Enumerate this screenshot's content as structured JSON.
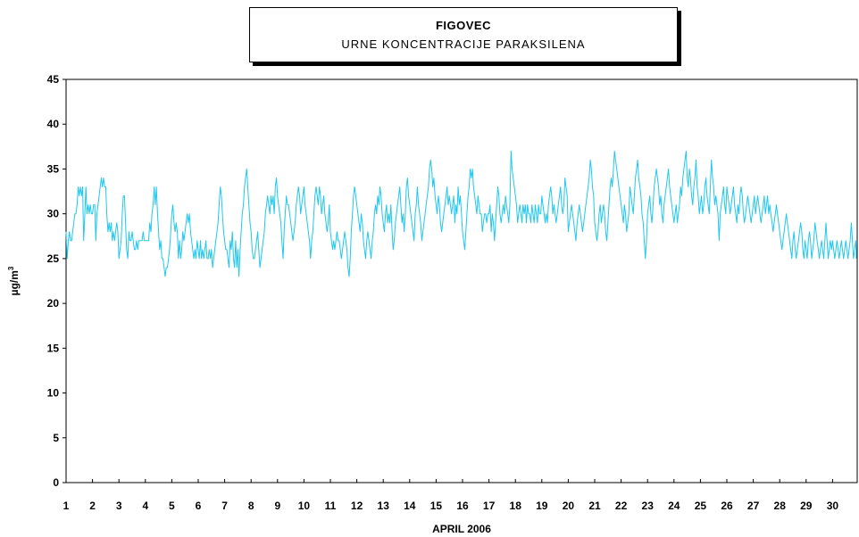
{
  "chart_data": {
    "type": "line",
    "title": "FIGOVEC",
    "subtitle": "URNE KONCENTRACIJE PARAKSILENA",
    "xlabel": "APRIL 2006",
    "ylabel": "µg/m",
    "ylabel_sup": "3",
    "ylim": [
      0,
      45
    ],
    "yticks": [
      "0",
      "5",
      "10",
      "15",
      "20",
      "25",
      "30",
      "35",
      "40",
      "45"
    ],
    "xticks": [
      "1",
      "2",
      "3",
      "4",
      "5",
      "6",
      "7",
      "8",
      "9",
      "10",
      "11",
      "12",
      "13",
      "14",
      "15",
      "16",
      "17",
      "18",
      "19",
      "20",
      "21",
      "22",
      "23",
      "24",
      "25",
      "26",
      "27",
      "28",
      "29",
      "30"
    ],
    "x_unit": "day of month (hourly samples)",
    "line_color": "#1ec8f0",
    "grid": false,
    "series": [
      {
        "day_values": [
          [
            28,
            25,
            27,
            28,
            27,
            27,
            28,
            29,
            30,
            30,
            31,
            33,
            32,
            33,
            32,
            33,
            27,
            30,
            33,
            30,
            31,
            30,
            31,
            30
          ],
          [
            30,
            31,
            31,
            27,
            30,
            31,
            32,
            33,
            34,
            33,
            34,
            33,
            33,
            30,
            28,
            29,
            28,
            29,
            27,
            28,
            27,
            28,
            29,
            28
          ],
          [
            25,
            26,
            27,
            30,
            32,
            32,
            29,
            26,
            25,
            28,
            27,
            27,
            28,
            27,
            26,
            26,
            27,
            26,
            27,
            27,
            27,
            27,
            28,
            27
          ],
          [
            27,
            27,
            27,
            27,
            29,
            28,
            30,
            31,
            33,
            31,
            33,
            30,
            28,
            26,
            27,
            25,
            25,
            24,
            23,
            24,
            24,
            25,
            26,
            28
          ],
          [
            30,
            31,
            29,
            28,
            29,
            28,
            25,
            27,
            25,
            26,
            28,
            27,
            28,
            29,
            30,
            29,
            30,
            28,
            27,
            26,
            25,
            26,
            25,
            27
          ],
          [
            26,
            25,
            27,
            25,
            26,
            25,
            26,
            27,
            25,
            25,
            26,
            25,
            26,
            24,
            25,
            26,
            27,
            28,
            29,
            31,
            33,
            32,
            30,
            28
          ],
          [
            27,
            26,
            26,
            25,
            24,
            27,
            26,
            28,
            25,
            24,
            27,
            24,
            26,
            23,
            26,
            28,
            30,
            31,
            33,
            34,
            35,
            33,
            31,
            29
          ],
          [
            28,
            26,
            25,
            25,
            26,
            27,
            28,
            26,
            24,
            25,
            26,
            27,
            28,
            30,
            31,
            32,
            31,
            30,
            32,
            31,
            32,
            30,
            33,
            34
          ],
          [
            32,
            31,
            30,
            29,
            27,
            25,
            28,
            30,
            32,
            31,
            31,
            30,
            29,
            28,
            27,
            28,
            29,
            31,
            32,
            33,
            32,
            30,
            31,
            32
          ],
          [
            33,
            31,
            30,
            29,
            28,
            27,
            25,
            27,
            28,
            30,
            32,
            33,
            32,
            31,
            33,
            32,
            30,
            31,
            32,
            30,
            29,
            28,
            29,
            31
          ],
          [
            28,
            27,
            26,
            27,
            26,
            27,
            28,
            27,
            27,
            26,
            25,
            26,
            27,
            28,
            27,
            26,
            24,
            23,
            25,
            28,
            30,
            32,
            33,
            32
          ],
          [
            31,
            30,
            29,
            28,
            30,
            29,
            27,
            26,
            25,
            27,
            28,
            27,
            26,
            25,
            27,
            28,
            30,
            31,
            30,
            32,
            31,
            33,
            32,
            30
          ],
          [
            29,
            28,
            30,
            31,
            29,
            30,
            29,
            31,
            28,
            26,
            27,
            29,
            30,
            31,
            32,
            33,
            31,
            29,
            30,
            28,
            30,
            33,
            34,
            32
          ],
          [
            31,
            30,
            29,
            28,
            27,
            30,
            31,
            33,
            31,
            30,
            29,
            27,
            28,
            29,
            30,
            31,
            32,
            33,
            35,
            36,
            35,
            33,
            34,
            32
          ],
          [
            31,
            30,
            32,
            31,
            29,
            28,
            29,
            30,
            31,
            32,
            33,
            31,
            32,
            31,
            30,
            31,
            32,
            29,
            31,
            30,
            33,
            31,
            32,
            30
          ],
          [
            28,
            27,
            26,
            28,
            30,
            32,
            33,
            35,
            34,
            35,
            33,
            32,
            31,
            30,
            32,
            31,
            30,
            30,
            28,
            29,
            30,
            30,
            29,
            30
          ],
          [
            30,
            31,
            28,
            30,
            29,
            27,
            29,
            31,
            33,
            32,
            30,
            29,
            30,
            31,
            30,
            32,
            31,
            30,
            29,
            31,
            37,
            35,
            34,
            33
          ],
          [
            32,
            31,
            29,
            30,
            31,
            30,
            29,
            31,
            30,
            31,
            29,
            31,
            30,
            30,
            29,
            31,
            30,
            29,
            31,
            30,
            29,
            31,
            30,
            30
          ],
          [
            32,
            31,
            30,
            29,
            30,
            29,
            31,
            32,
            33,
            32,
            30,
            31,
            30,
            29,
            30,
            31,
            32,
            33,
            31,
            30,
            31,
            34,
            33,
            32
          ],
          [
            28,
            29,
            30,
            31,
            30,
            29,
            28,
            27,
            29,
            30,
            31,
            30,
            29,
            28,
            29,
            30,
            31,
            32,
            33,
            34,
            36,
            35,
            33,
            32
          ],
          [
            29,
            28,
            27,
            28,
            30,
            31,
            29,
            30,
            31,
            30,
            28,
            27,
            29,
            31,
            33,
            34,
            33,
            35,
            37,
            36,
            35,
            34,
            33,
            32
          ],
          [
            31,
            30,
            29,
            31,
            30,
            28,
            29,
            30,
            33,
            32,
            31,
            30,
            32,
            34,
            35,
            36,
            34,
            33,
            32,
            30,
            29,
            27,
            25,
            27
          ],
          [
            30,
            31,
            32,
            30,
            29,
            31,
            33,
            34,
            35,
            34,
            33,
            31,
            32,
            30,
            29,
            31,
            32,
            33,
            34,
            35,
            33,
            32,
            31,
            30
          ],
          [
            29,
            30,
            31,
            29,
            30,
            31,
            33,
            32,
            34,
            35,
            36,
            37,
            34,
            33,
            35,
            34,
            32,
            31,
            33,
            34,
            36,
            33,
            32,
            30
          ],
          [
            31,
            32,
            30,
            31,
            33,
            34,
            32,
            31,
            30,
            33,
            36,
            34,
            33,
            31,
            32,
            31,
            30,
            27,
            30,
            31,
            32,
            33,
            31,
            30
          ],
          [
            33,
            32,
            31,
            30,
            31,
            32,
            33,
            31,
            30,
            29,
            31,
            30,
            32,
            33,
            32,
            30,
            29,
            30,
            31,
            32,
            31,
            30,
            29,
            30
          ],
          [
            31,
            32,
            30,
            31,
            32,
            31,
            30,
            29,
            30,
            31,
            32,
            30,
            31,
            32,
            30,
            31,
            30,
            29,
            28,
            29,
            30,
            31,
            30,
            29
          ],
          [
            28,
            27,
            26,
            27,
            28,
            29,
            30,
            29,
            28,
            27,
            26,
            25,
            27,
            28,
            26,
            25,
            26,
            27,
            28,
            29,
            28,
            26,
            25,
            27
          ],
          [
            26,
            25,
            27,
            28,
            27,
            25,
            26,
            27,
            29,
            28,
            27,
            26,
            25,
            26,
            27,
            26,
            25,
            27,
            29,
            27,
            25,
            26,
            27,
            26
          ],
          [
            27,
            26,
            25,
            26,
            27,
            26,
            25,
            26,
            27,
            26,
            25,
            26,
            27,
            26,
            25,
            26,
            27,
            29,
            27,
            25,
            26,
            27,
            26,
            25
          ]
        ]
      }
    ]
  }
}
